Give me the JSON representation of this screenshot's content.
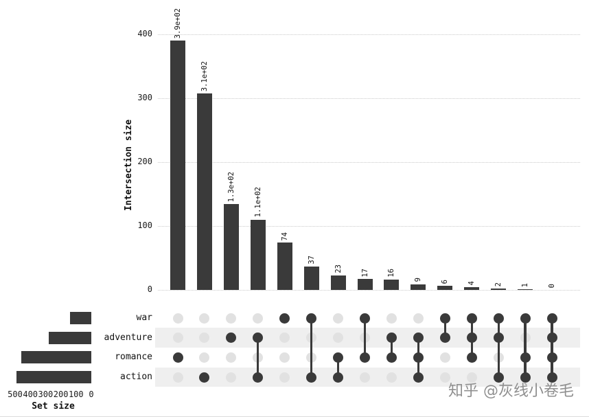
{
  "watermark": "知乎 @灰线小卷毛",
  "colors": {
    "bar": "#3a3a3a",
    "active_dot": "#3a3a3a",
    "inactive_dot": "#e1e1e1",
    "stripe": "#efefef",
    "grid": "#c9c9c9"
  },
  "chart_data": {
    "type": "bar",
    "subtype": "upset-plot",
    "ylabel": "Intersection size",
    "xlabel": "",
    "yticks": [
      0,
      100,
      200,
      300,
      400
    ],
    "ylim": [
      0,
      440
    ],
    "grid": "dotted-horizontal",
    "sets": [
      "war",
      "adventure",
      "romance",
      "action"
    ],
    "set_sizes": {
      "war": 141,
      "adventure": 281,
      "romance": 460,
      "action": 489
    },
    "set_size_axis": {
      "label": "Set size",
      "ticks": [
        500,
        400,
        300,
        200,
        100,
        0
      ]
    },
    "intersections": [
      {
        "label": "3.9e+02",
        "value": 390,
        "members": [
          "romance"
        ]
      },
      {
        "label": "3.1e+02",
        "value": 307,
        "members": [
          "action"
        ]
      },
      {
        "label": "1.3e+02",
        "value": 134,
        "members": [
          "adventure"
        ]
      },
      {
        "label": "1.1e+02",
        "value": 110,
        "members": [
          "adventure",
          "action"
        ]
      },
      {
        "label": "74",
        "value": 74,
        "members": [
          "war"
        ]
      },
      {
        "label": "37",
        "value": 37,
        "members": [
          "war",
          "action"
        ]
      },
      {
        "label": "23",
        "value": 23,
        "members": [
          "romance",
          "action"
        ]
      },
      {
        "label": "17",
        "value": 17,
        "members": [
          "war",
          "romance"
        ]
      },
      {
        "label": "16",
        "value": 16,
        "members": [
          "adventure",
          "romance"
        ]
      },
      {
        "label": "9",
        "value": 9,
        "members": [
          "adventure",
          "romance",
          "action"
        ]
      },
      {
        "label": "6",
        "value": 6,
        "members": [
          "war",
          "adventure"
        ]
      },
      {
        "label": "4",
        "value": 4,
        "members": [
          "war",
          "adventure",
          "romance"
        ]
      },
      {
        "label": "2",
        "value": 2,
        "members": [
          "war",
          "adventure",
          "action"
        ]
      },
      {
        "label": "1",
        "value": 1,
        "members": [
          "war",
          "romance",
          "action"
        ]
      },
      {
        "label": "0",
        "value": 0,
        "members": [
          "war",
          "adventure",
          "romance",
          "action"
        ]
      }
    ]
  }
}
